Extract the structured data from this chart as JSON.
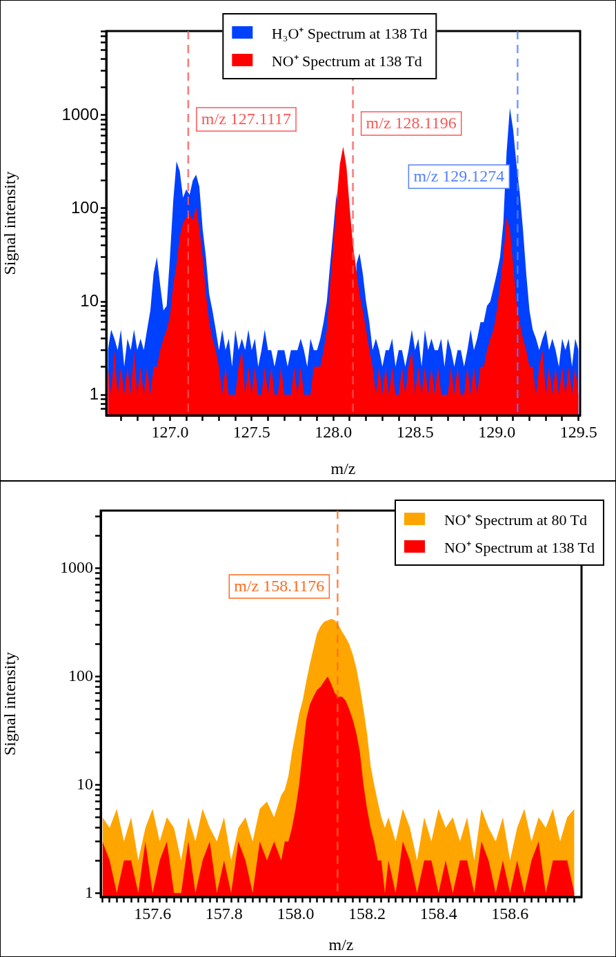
{
  "chart_data": [
    {
      "type": "area",
      "xlabel": "m/z",
      "ylabel": "Signal intensity",
      "log": "y",
      "legend": "top",
      "xlim": [
        126.61,
        129.51
      ],
      "ylim": [
        0.62,
        8000
      ],
      "xticks": [
        {
          "value": 126.7,
          "label": null
        },
        {
          "value": 126.8,
          "label": null
        },
        {
          "value": 126.9,
          "label": null
        },
        {
          "value": 127,
          "label": "127.0"
        },
        {
          "value": 127.1,
          "label": null
        },
        {
          "value": 127.2,
          "label": null
        },
        {
          "value": 127.3,
          "label": null
        },
        {
          "value": 127.4,
          "label": null
        },
        127.5,
        {
          "value": 127.6,
          "label": null
        },
        {
          "value": 127.7,
          "label": null
        },
        {
          "value": 127.8,
          "label": null
        },
        {
          "value": 127.9,
          "label": null
        },
        {
          "value": 128,
          "label": "128.0"
        },
        {
          "value": 128.1,
          "label": null
        },
        {
          "value": 128.2,
          "label": null
        },
        {
          "value": 128.3,
          "label": null
        },
        {
          "value": 128.4,
          "label": null
        },
        128.5,
        {
          "value": 128.6,
          "label": null
        },
        {
          "value": 128.7,
          "label": null
        },
        {
          "value": 128.8,
          "label": null
        },
        {
          "value": 128.9,
          "label": null
        },
        {
          "value": 129,
          "label": "129.0"
        },
        {
          "value": 129.1,
          "label": null
        },
        {
          "value": 129.2,
          "label": null
        },
        {
          "value": 129.3,
          "label": null
        },
        {
          "value": 129.4,
          "label": null
        },
        129.5
      ],
      "yticks": [
        {
          "value": 0.7,
          "label": null
        },
        {
          "value": 0.8,
          "label": null
        },
        {
          "value": 0.9,
          "label": null
        },
        1,
        {
          "value": 2,
          "label": null
        },
        {
          "value": 3,
          "label": null
        },
        {
          "value": 4,
          "label": null
        },
        {
          "value": 5,
          "label": null
        },
        {
          "value": 6,
          "label": null
        },
        {
          "value": 7,
          "label": null
        },
        {
          "value": 8,
          "label": null
        },
        {
          "value": 9,
          "label": null
        },
        10,
        {
          "value": 20,
          "label": null
        },
        {
          "value": 30,
          "label": null
        },
        {
          "value": 40,
          "label": null
        },
        {
          "value": 50,
          "label": null
        },
        {
          "value": 60,
          "label": null
        },
        {
          "value": 70,
          "label": null
        },
        {
          "value": 80,
          "label": null
        },
        {
          "value": 90,
          "label": null
        },
        100,
        {
          "value": 200,
          "label": null
        },
        {
          "value": 300,
          "label": null
        },
        {
          "value": 400,
          "label": null
        },
        {
          "value": 500,
          "label": null
        },
        {
          "value": 600,
          "label": null
        },
        {
          "value": 700,
          "label": null
        },
        {
          "value": 800,
          "label": null
        },
        {
          "value": 900,
          "label": null
        },
        1000,
        {
          "value": 2000,
          "label": null
        },
        {
          "value": 3000,
          "label": null
        },
        {
          "value": 4000,
          "label": null
        },
        {
          "value": 5000,
          "label": null
        },
        {
          "value": 6000,
          "label": null
        },
        {
          "value": 7000,
          "label": null
        },
        {
          "value": 8000,
          "label": null
        }
      ],
      "x": [
        126.62,
        126.64,
        126.66,
        126.68,
        126.7,
        126.72,
        126.74,
        126.76,
        126.78,
        126.8,
        126.82,
        126.84,
        126.86,
        126.88,
        126.9,
        126.92,
        126.94,
        126.96,
        126.98,
        127.0,
        127.02,
        127.04,
        127.06,
        127.08,
        127.1,
        127.12,
        127.14,
        127.16,
        127.18,
        127.2,
        127.22,
        127.24,
        127.26,
        127.28,
        127.3,
        127.32,
        127.34,
        127.36,
        127.38,
        127.4,
        127.42,
        127.44,
        127.46,
        127.48,
        127.5,
        127.52,
        127.54,
        127.56,
        127.58,
        127.6,
        127.62,
        127.64,
        127.66,
        127.68,
        127.7,
        127.72,
        127.74,
        127.76,
        127.78,
        127.8,
        127.82,
        127.84,
        127.86,
        127.88,
        127.9,
        127.92,
        127.94,
        127.96,
        127.98,
        128.0,
        128.02,
        128.04,
        128.06,
        128.08,
        128.1,
        128.12,
        128.14,
        128.16,
        128.18,
        128.2,
        128.22,
        128.24,
        128.26,
        128.28,
        128.3,
        128.32,
        128.34,
        128.36,
        128.38,
        128.4,
        128.42,
        128.44,
        128.46,
        128.48,
        128.5,
        128.52,
        128.54,
        128.56,
        128.58,
        128.6,
        128.62,
        128.64,
        128.66,
        128.68,
        128.7,
        128.72,
        128.74,
        128.76,
        128.78,
        128.8,
        128.82,
        128.84,
        128.86,
        128.88,
        128.9,
        128.92,
        128.94,
        128.96,
        128.98,
        129.0,
        129.02,
        129.04,
        129.06,
        129.08,
        129.1,
        129.12,
        129.14,
        129.16,
        129.18,
        129.2,
        129.22,
        129.24,
        129.26,
        129.28,
        129.3,
        129.32,
        129.34,
        129.36,
        129.38,
        129.4,
        129.42,
        129.44,
        129.46,
        129.48,
        129.5
      ],
      "series": [
        {
          "name": "H₃O⁺ Spectrum at 138 Td",
          "color": "#0040ff",
          "values": [
            3,
            5,
            4,
            3,
            5,
            2,
            4,
            3,
            5,
            3,
            4,
            3,
            5,
            8,
            20,
            30,
            15,
            8,
            9,
            30,
            120,
            320,
            250,
            130,
            160,
            140,
            200,
            230,
            170,
            60,
            30,
            12,
            8,
            5,
            3,
            5,
            3,
            4,
            2,
            5,
            3,
            4,
            3,
            5,
            3,
            4,
            2,
            3,
            5,
            3,
            3,
            2,
            3,
            3,
            3,
            2,
            3,
            3,
            3,
            4,
            3,
            2,
            4,
            3,
            3,
            4,
            6,
            10,
            25,
            60,
            150,
            null,
            null,
            null,
            null,
            null,
            25,
            33,
            20,
            10,
            6,
            3,
            4,
            3,
            2,
            3,
            3,
            4,
            2,
            3,
            3,
            2,
            3,
            5,
            3,
            4,
            2,
            5,
            3,
            4,
            3,
            3,
            4,
            2,
            4,
            3,
            2,
            3,
            3,
            2,
            3,
            5,
            3,
            4,
            6,
            6,
            9,
            10,
            14,
            20,
            30,
            70,
            400,
            1200,
            700,
            300,
            150,
            60,
            20,
            8,
            5,
            4,
            3,
            4,
            5,
            3,
            4,
            3,
            2,
            4,
            3,
            4,
            2,
            4,
            3
          ]
        },
        {
          "name": "NO⁺ Spectrum at 138 Td",
          "color": "#ff0000",
          "values": [
            2,
            1,
            3,
            1,
            2,
            1,
            2,
            1,
            3,
            1,
            2,
            1,
            2,
            1,
            2,
            2,
            3,
            4,
            5,
            7,
            15,
            25,
            50,
            70,
            80,
            85,
            75,
            105,
            60,
            30,
            12,
            6,
            4,
            3,
            2,
            1,
            2,
            1,
            1,
            1,
            2,
            3,
            1,
            2,
            1,
            2,
            1,
            1,
            2,
            1,
            2,
            1,
            1,
            2,
            1,
            1,
            1,
            2,
            1,
            2,
            1,
            1,
            1,
            2,
            2,
            2,
            3,
            5,
            15,
            40,
            120,
            300,
            460,
            280,
            100,
            40,
            22,
            12,
            8,
            5,
            3,
            2,
            1,
            2,
            1,
            2,
            1,
            2,
            1,
            1,
            2,
            1,
            2,
            3,
            1,
            2,
            1,
            2,
            1,
            2,
            1,
            2,
            1,
            1,
            1,
            2,
            1,
            2,
            1,
            1,
            2,
            1,
            2,
            1,
            2,
            2,
            3,
            4,
            5,
            8,
            15,
            30,
            80,
            60,
            25,
            10,
            6,
            4,
            3,
            2,
            2,
            1,
            2,
            3,
            1,
            2,
            1,
            2,
            1,
            2,
            1,
            2,
            1,
            2,
            1
          ]
        }
      ],
      "ref_lines": [
        {
          "axis": "x",
          "value": 127.1117,
          "label": "m/z 127.1117",
          "color": "#ff5555",
          "line_style": "dashed"
        },
        {
          "axis": "x",
          "value": 128.1196,
          "label": "m/z 128.1196",
          "color": "#ff5555",
          "line_style": "dashed"
        },
        {
          "axis": "x",
          "value": 129.1274,
          "label": "m/z 129.1274",
          "color": "#5580ff",
          "line_style": "dashed"
        }
      ]
    },
    {
      "type": "area",
      "xlabel": "m/z",
      "ylabel": "Signal intensity",
      "log": "y",
      "legend": "top right",
      "xlim": [
        157.455,
        158.8
      ],
      "ylim": [
        0.92,
        3400
      ],
      "xticks": [
        {
          "value": 157.46,
          "label": null
        },
        {
          "value": 157.48,
          "label": null
        },
        {
          "value": 157.5,
          "label": null
        },
        {
          "value": 157.52,
          "label": null
        },
        {
          "value": 157.54,
          "label": null
        },
        {
          "value": 157.56,
          "label": null
        },
        {
          "value": 157.58,
          "label": null
        },
        157.6,
        {
          "value": 157.62,
          "label": null
        },
        {
          "value": 157.64,
          "label": null
        },
        {
          "value": 157.66,
          "label": null
        },
        {
          "value": 157.68,
          "label": null
        },
        {
          "value": 157.7,
          "label": null
        },
        {
          "value": 157.72,
          "label": null
        },
        {
          "value": 157.74,
          "label": null
        },
        {
          "value": 157.76,
          "label": null
        },
        {
          "value": 157.78,
          "label": null
        },
        157.8,
        {
          "value": 157.82,
          "label": null
        },
        {
          "value": 157.84,
          "label": null
        },
        {
          "value": 157.86,
          "label": null
        },
        {
          "value": 157.88,
          "label": null
        },
        {
          "value": 157.9,
          "label": null
        },
        {
          "value": 157.92,
          "label": null
        },
        {
          "value": 157.94,
          "label": null
        },
        {
          "value": 157.96,
          "label": null
        },
        {
          "value": 157.98,
          "label": null
        },
        {
          "value": 158,
          "label": "158.0"
        },
        {
          "value": 158.02,
          "label": null
        },
        {
          "value": 158.04,
          "label": null
        },
        {
          "value": 158.06,
          "label": null
        },
        {
          "value": 158.08,
          "label": null
        },
        {
          "value": 158.1,
          "label": null
        },
        {
          "value": 158.12,
          "label": null
        },
        {
          "value": 158.14,
          "label": null
        },
        {
          "value": 158.16,
          "label": null
        },
        {
          "value": 158.18,
          "label": null
        },
        158.2,
        {
          "value": 158.22,
          "label": null
        },
        {
          "value": 158.24,
          "label": null
        },
        {
          "value": 158.26,
          "label": null
        },
        {
          "value": 158.28,
          "label": null
        },
        {
          "value": 158.3,
          "label": null
        },
        {
          "value": 158.32,
          "label": null
        },
        {
          "value": 158.34,
          "label": null
        },
        {
          "value": 158.36,
          "label": null
        },
        {
          "value": 158.38,
          "label": null
        },
        158.4,
        {
          "value": 158.42,
          "label": null
        },
        {
          "value": 158.44,
          "label": null
        },
        {
          "value": 158.46,
          "label": null
        },
        {
          "value": 158.48,
          "label": null
        },
        {
          "value": 158.5,
          "label": null
        },
        {
          "value": 158.52,
          "label": null
        },
        {
          "value": 158.54,
          "label": null
        },
        {
          "value": 158.56,
          "label": null
        },
        {
          "value": 158.58,
          "label": null
        },
        158.6,
        {
          "value": 158.62,
          "label": null
        },
        {
          "value": 158.64,
          "label": null
        },
        {
          "value": 158.66,
          "label": null
        },
        {
          "value": 158.68,
          "label": null
        },
        {
          "value": 158.7,
          "label": null
        },
        {
          "value": 158.72,
          "label": null
        },
        {
          "value": 158.74,
          "label": null
        },
        {
          "value": 158.76,
          "label": null
        },
        {
          "value": 158.78,
          "label": null
        }
      ],
      "yticks": [
        1,
        {
          "value": 2,
          "label": null
        },
        {
          "value": 3,
          "label": null
        },
        {
          "value": 4,
          "label": null
        },
        {
          "value": 5,
          "label": null
        },
        {
          "value": 6,
          "label": null
        },
        {
          "value": 7,
          "label": null
        },
        {
          "value": 8,
          "label": null
        },
        {
          "value": 9,
          "label": null
        },
        10,
        {
          "value": 20,
          "label": null
        },
        {
          "value": 30,
          "label": null
        },
        {
          "value": 40,
          "label": null
        },
        {
          "value": 50,
          "label": null
        },
        {
          "value": 60,
          "label": null
        },
        {
          "value": 70,
          "label": null
        },
        {
          "value": 80,
          "label": null
        },
        {
          "value": 90,
          "label": null
        },
        100,
        {
          "value": 200,
          "label": null
        },
        {
          "value": 300,
          "label": null
        },
        {
          "value": 400,
          "label": null
        },
        {
          "value": 500,
          "label": null
        },
        {
          "value": 600,
          "label": null
        },
        {
          "value": 700,
          "label": null
        },
        {
          "value": 800,
          "label": null
        },
        {
          "value": 900,
          "label": null
        },
        1000,
        {
          "value": 2000,
          "label": null
        },
        {
          "value": 3000,
          "label": null
        }
      ],
      "x": [
        157.46,
        157.48,
        157.5,
        157.52,
        157.54,
        157.56,
        157.58,
        157.6,
        157.62,
        157.64,
        157.66,
        157.68,
        157.7,
        157.72,
        157.74,
        157.76,
        157.78,
        157.8,
        157.82,
        157.84,
        157.86,
        157.88,
        157.9,
        157.92,
        157.94,
        157.96,
        157.97,
        157.98,
        157.99,
        158.0,
        158.01,
        158.02,
        158.03,
        158.04,
        158.05,
        158.06,
        158.07,
        158.08,
        158.09,
        158.1,
        158.11,
        158.12,
        158.13,
        158.14,
        158.15,
        158.16,
        158.17,
        158.18,
        158.19,
        158.2,
        158.21,
        158.22,
        158.23,
        158.24,
        158.25,
        158.26,
        158.28,
        158.3,
        158.32,
        158.34,
        158.36,
        158.38,
        158.4,
        158.42,
        158.44,
        158.46,
        158.48,
        158.5,
        158.52,
        158.54,
        158.56,
        158.58,
        158.6,
        158.62,
        158.64,
        158.66,
        158.68,
        158.7,
        158.72,
        158.74,
        158.76,
        158.78
      ],
      "series": [
        {
          "name": "NO⁺ Spectrum at 80 Td",
          "color": "#ffa500",
          "values": [
            5,
            4,
            6,
            3,
            5,
            2,
            4,
            6,
            3,
            5,
            4,
            2,
            5,
            3,
            6,
            4,
            3,
            5,
            2,
            4,
            5,
            3,
            6,
            7,
            5,
            8,
            9,
            12,
            20,
            30,
            45,
            60,
            90,
            130,
            180,
            250,
            290,
            320,
            330,
            340,
            330,
            300,
            260,
            230,
            200,
            160,
            120,
            80,
            50,
            30,
            15,
            10,
            7,
            5,
            4,
            5,
            3,
            6,
            4,
            2,
            5,
            3,
            6,
            4,
            5,
            3,
            5,
            2,
            6,
            4,
            3,
            5,
            2,
            4,
            6,
            3,
            5,
            4,
            6,
            3,
            5,
            6
          ]
        },
        {
          "name": "NO⁺ Spectrum at 138 Td",
          "color": "#ff0000",
          "values": [
            3,
            2,
            1,
            2,
            2,
            1,
            3,
            1,
            2,
            3,
            1,
            1,
            3,
            1,
            2,
            3,
            1,
            2,
            1,
            3,
            2,
            1,
            3,
            2,
            3,
            2,
            3,
            3,
            4,
            6,
            10,
            20,
            40,
            55,
            65,
            75,
            80,
            90,
            100,
            85,
            70,
            65,
            65,
            60,
            50,
            40,
            30,
            20,
            10,
            6,
            4,
            3,
            2,
            2,
            1,
            2,
            1,
            3,
            2,
            1,
            2,
            2,
            1,
            2,
            1,
            2,
            2,
            1,
            3,
            2,
            1,
            2,
            1,
            2,
            1,
            2,
            3,
            1,
            2,
            2,
            2,
            1
          ]
        }
      ],
      "ref_lines": [
        {
          "axis": "x",
          "value": 158.1176,
          "label": "m/z 158.1176",
          "color": "#ff6a1a",
          "line_style": "dashed"
        }
      ]
    }
  ]
}
